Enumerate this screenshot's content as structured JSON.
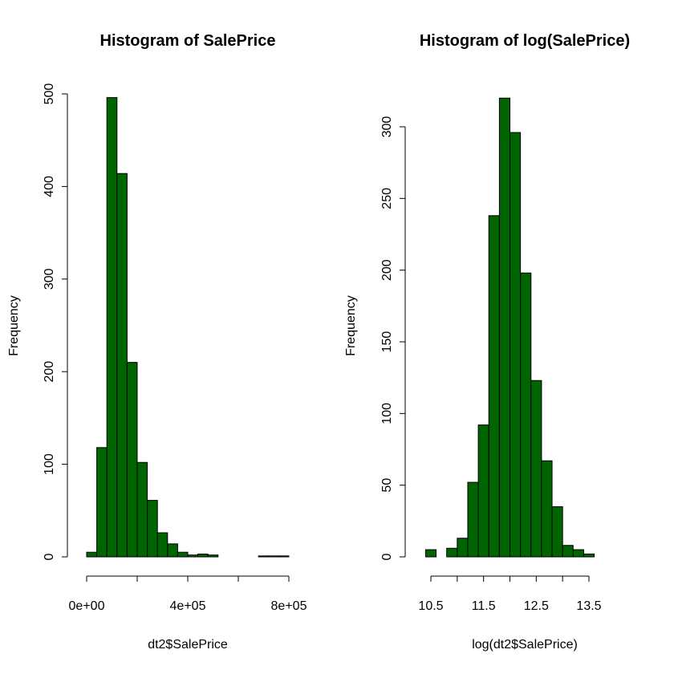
{
  "colors": {
    "bar_fill": "#006400",
    "bar_stroke": "#000000",
    "background": "#ffffff"
  },
  "chart_data": [
    {
      "type": "bar",
      "title": "Histogram of SalePrice",
      "xlabel": "dt2$SalePrice",
      "ylabel": "Frequency",
      "bin_edges": [
        0,
        40000,
        80000,
        120000,
        160000,
        200000,
        240000,
        280000,
        320000,
        360000,
        400000,
        440000,
        480000,
        520000,
        560000,
        600000,
        640000,
        680000,
        720000,
        760000,
        800000
      ],
      "values": [
        5,
        118,
        496,
        414,
        210,
        102,
        61,
        26,
        14,
        5,
        2,
        3,
        2,
        0,
        0,
        0,
        0,
        1,
        1,
        1
      ],
      "xlim": [
        0,
        800000
      ],
      "ylim": [
        0,
        500
      ],
      "x_ticks": [
        0,
        200000,
        400000,
        600000,
        800000
      ],
      "x_tick_labels": [
        "0e+00",
        "",
        "4e+05",
        "",
        "8e+05"
      ],
      "y_ticks": [
        0,
        100,
        200,
        300,
        400,
        500
      ],
      "y_tick_labels": [
        "0",
        "100",
        "200",
        "300",
        "400",
        "500"
      ]
    },
    {
      "type": "bar",
      "title": "Histogram of log(SalePrice)",
      "xlabel": "log(dt2$SalePrice)",
      "ylabel": "Frequency",
      "bin_edges": [
        10.4,
        10.6,
        10.8,
        11.0,
        11.2,
        11.4,
        11.6,
        11.8,
        12.0,
        12.2,
        12.4,
        12.6,
        12.8,
        13.0,
        13.2,
        13.4,
        13.6
      ],
      "values": [
        5,
        0,
        6,
        13,
        52,
        92,
        238,
        320,
        296,
        198,
        123,
        67,
        35,
        8,
        5,
        2
      ],
      "xlim": [
        10.5,
        13.5
      ],
      "ylim": [
        0,
        300
      ],
      "x_ticks": [
        10.5,
        11.0,
        11.5,
        12.0,
        12.5,
        13.0,
        13.5
      ],
      "x_tick_labels": [
        "10.5",
        "",
        "11.5",
        "",
        "12.5",
        "",
        "13.5"
      ],
      "y_ticks": [
        0,
        50,
        100,
        150,
        200,
        250,
        300
      ],
      "y_tick_labels": [
        "0",
        "50",
        "100",
        "150",
        "200",
        "250",
        "300"
      ]
    }
  ]
}
